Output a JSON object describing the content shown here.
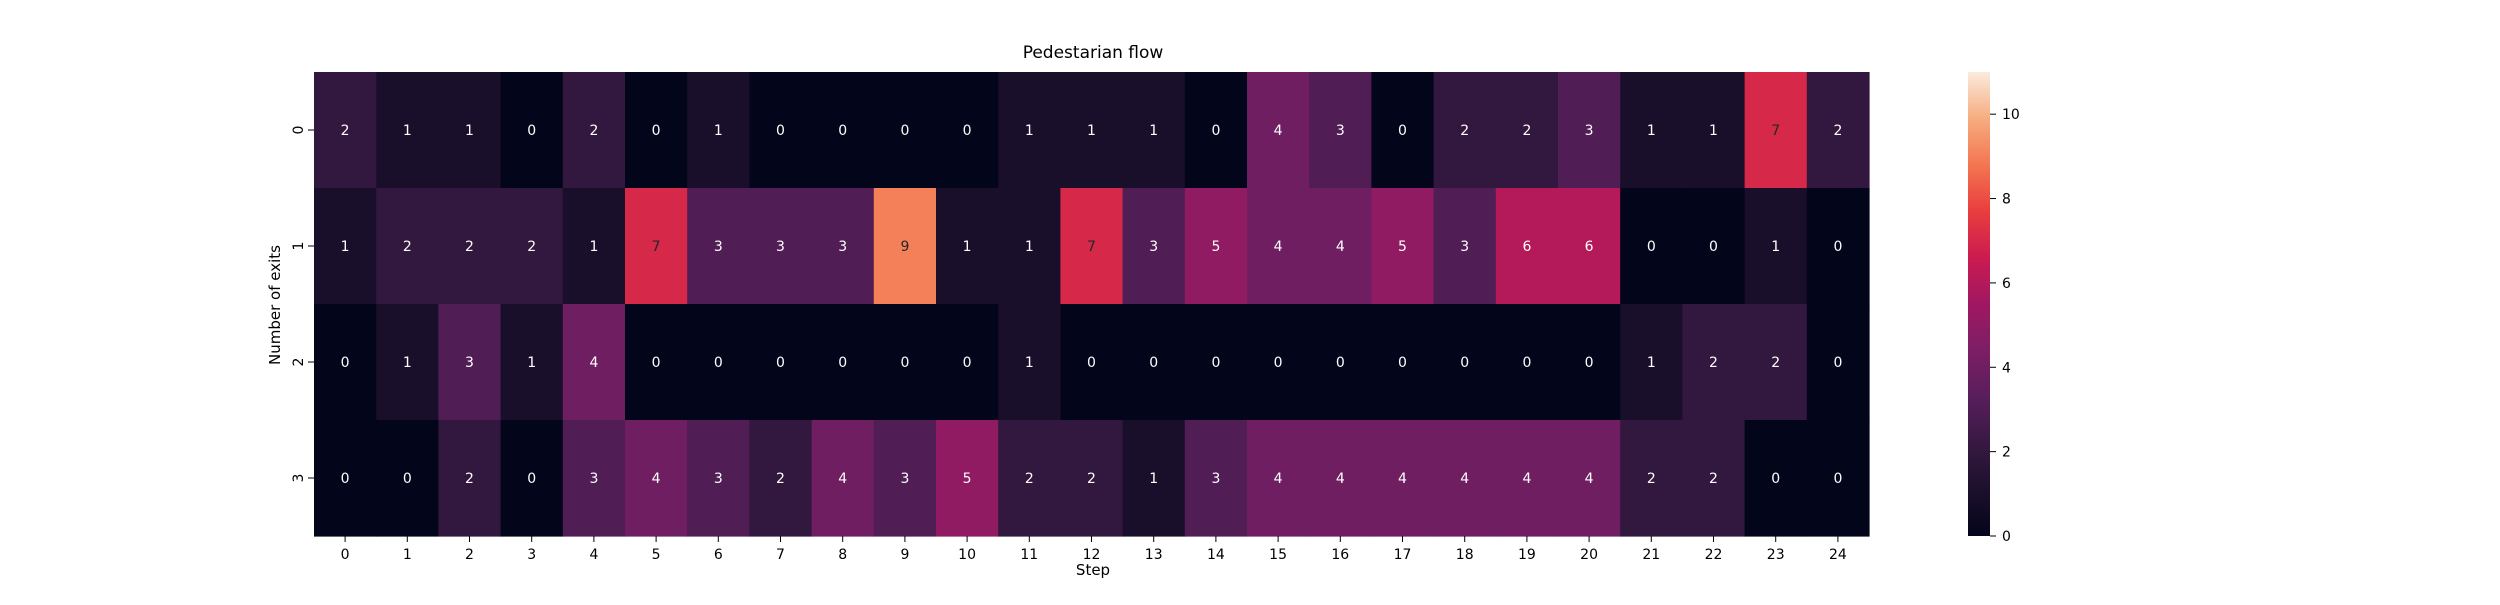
{
  "chart_data": {
    "type": "heatmap",
    "title": "Pedestarian flow",
    "xlabel": "Step",
    "ylabel": "Number of exits",
    "x": [
      "0",
      "1",
      "2",
      "3",
      "4",
      "5",
      "6",
      "7",
      "8",
      "9",
      "10",
      "11",
      "12",
      "13",
      "14",
      "15",
      "16",
      "17",
      "18",
      "19",
      "20",
      "21",
      "22",
      "23",
      "24"
    ],
    "y": [
      "0",
      "1",
      "2",
      "3"
    ],
    "values": [
      [
        2,
        1,
        1,
        0,
        2,
        0,
        1,
        0,
        0,
        0,
        0,
        1,
        1,
        1,
        0,
        4,
        3,
        0,
        2,
        2,
        3,
        1,
        1,
        7,
        2
      ],
      [
        1,
        2,
        2,
        2,
        1,
        7,
        3,
        3,
        3,
        9,
        1,
        1,
        7,
        3,
        5,
        4,
        4,
        5,
        3,
        6,
        6,
        0,
        0,
        1,
        0
      ],
      [
        0,
        1,
        3,
        1,
        4,
        0,
        0,
        0,
        0,
        0,
        0,
        1,
        0,
        0,
        0,
        0,
        0,
        0,
        0,
        0,
        0,
        1,
        2,
        2,
        0
      ],
      [
        0,
        0,
        2,
        0,
        3,
        4,
        3,
        2,
        4,
        3,
        5,
        2,
        2,
        1,
        3,
        4,
        4,
        4,
        4,
        4,
        4,
        2,
        2,
        0,
        0
      ]
    ],
    "annotated": true,
    "colormap": "rocket",
    "colorbar": {
      "min": 0,
      "max": 11,
      "ticks": [
        "0",
        "2",
        "4",
        "6",
        "8",
        "10"
      ]
    },
    "grid": false,
    "legend": "colorbar-right"
  }
}
